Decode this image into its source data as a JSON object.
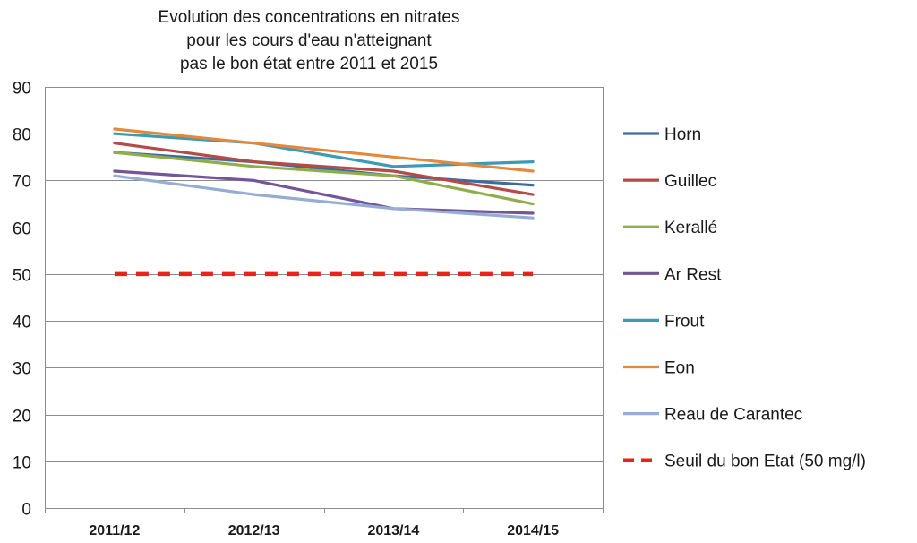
{
  "chart_data": {
    "type": "line",
    "title_lines": [
      "Evolution des concentrations en nitrates",
      "pour les cours d'eau n'atteignant",
      "pas le bon état entre 2011 et 2015"
    ],
    "categories": [
      "2011/12",
      "2012/13",
      "2013/14",
      "2014/15"
    ],
    "ylim": [
      0,
      90
    ],
    "yticks": [
      0,
      10,
      20,
      30,
      40,
      50,
      60,
      70,
      80,
      90
    ],
    "grid": true,
    "legend_position": "right",
    "series": [
      {
        "name": "Horn",
        "color": "#3a6c9e",
        "values": [
          76,
          74,
          71,
          69
        ]
      },
      {
        "name": "Guillec",
        "color": "#b34c47",
        "values": [
          78,
          74,
          72,
          67
        ]
      },
      {
        "name": "Kerallé",
        "color": "#8fae4a",
        "values": [
          76,
          73,
          71,
          65
        ]
      },
      {
        "name": "Ar Rest",
        "color": "#73559a",
        "values": [
          72,
          70,
          64,
          63
        ]
      },
      {
        "name": "Frout",
        "color": "#3d9ab4",
        "values": [
          80,
          78,
          73,
          74
        ]
      },
      {
        "name": "Eon",
        "color": "#e18a3e",
        "values": [
          81,
          78,
          75,
          72
        ]
      },
      {
        "name": "Reau de Carantec",
        "color": "#95add2",
        "values": [
          71,
          67,
          64,
          62
        ]
      },
      {
        "name": "Seuil du bon Etat (50 mg/l)",
        "color": "#e8231e",
        "style": "dashed",
        "values": [
          50,
          50,
          50,
          50
        ]
      }
    ]
  }
}
